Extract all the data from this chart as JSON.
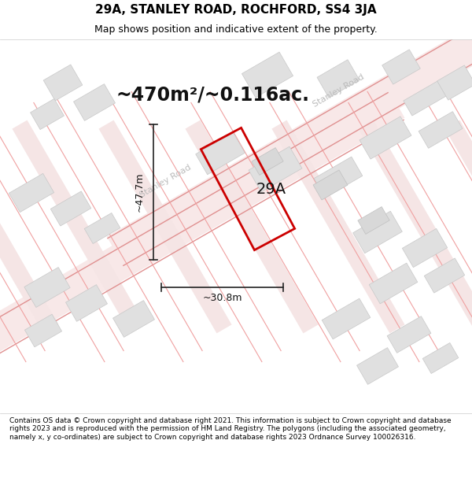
{
  "title": "29A, STANLEY ROAD, ROCHFORD, SS4 3JA",
  "subtitle": "Map shows position and indicative extent of the property.",
  "area_text": "~470m²/~0.116ac.",
  "label_29A": "29A",
  "dim_height": "~47.7m",
  "dim_width": "~30.8m",
  "street_label": "Stanley Road",
  "copyright_text": "Contains OS data © Crown copyright and database right 2021. This information is subject to Crown copyright and database rights 2023 and is reproduced with the permission of HM Land Registry. The polygons (including the associated geometry, namely x, y co-ordinates) are subject to Crown copyright and database rights 2023 Ordnance Survey 100026316.",
  "map_bg": "#f5f5f5",
  "title_area_bg": "#ffffff",
  "footer_area_bg": "#ffffff",
  "road_color_light": "#f0b0b0",
  "building_fill": "#e0e0e0",
  "building_edge": "#c0c0c0",
  "property_color": "#cc0000",
  "dim_line_color": "#222222",
  "street_text_color": "#bbbbbb",
  "figsize": [
    6.0,
    6.25
  ],
  "dpi": 100
}
